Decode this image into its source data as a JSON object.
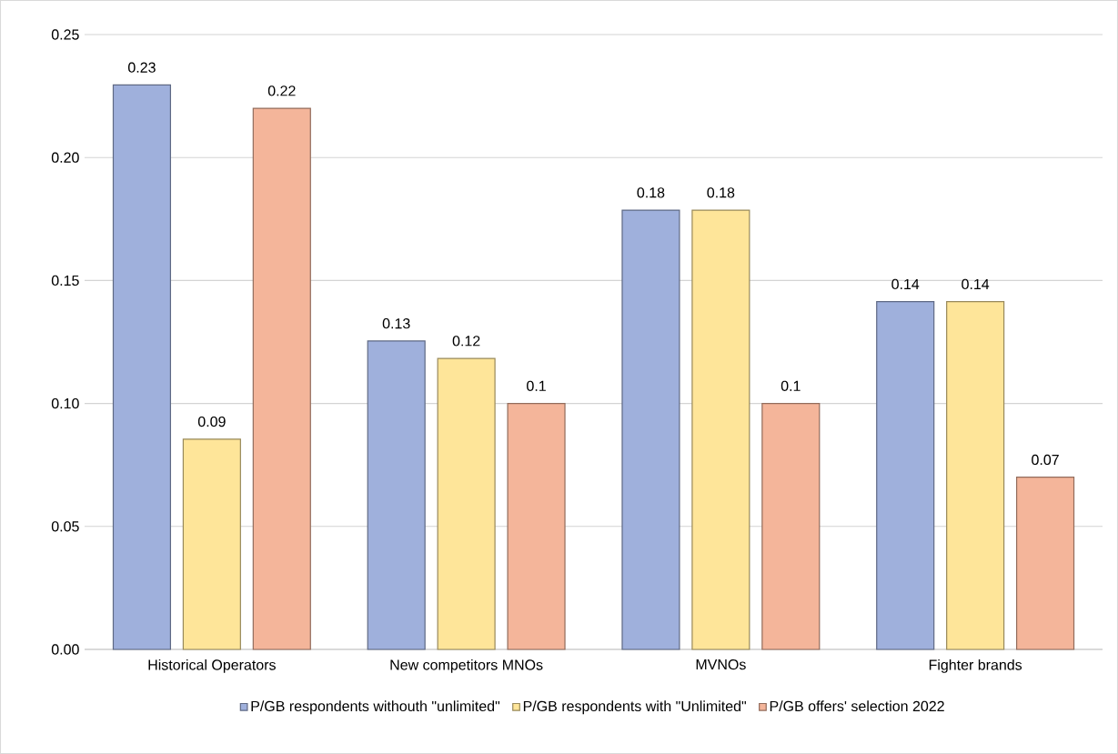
{
  "chart_data": {
    "type": "bar",
    "categories": [
      "Historical Operators",
      "New competitors MNOs",
      "MVNOs",
      "Fighter brands"
    ],
    "series": [
      {
        "name": "P/GB respondents withouth \"unlimited\"",
        "color": "#9fb0dc",
        "values": [
          0.2295,
          0.1254,
          0.1786,
          0.1414
        ],
        "value_labels": [
          "0.23",
          "0.13",
          "0.18",
          "0.14"
        ]
      },
      {
        "name": "P/GB respondents with \"Unlimited\"",
        "color": "#fee599",
        "values": [
          0.0855,
          0.1183,
          0.1786,
          0.1414
        ],
        "value_labels": [
          "0.09",
          "0.12",
          "0.18",
          "0.14"
        ]
      },
      {
        "name": "P/GB offers' selection 2022",
        "color": "#f4b59a",
        "values": [
          0.22,
          0.1,
          0.1,
          0.07
        ],
        "value_labels": [
          "0.22",
          "0.1",
          "0.1",
          "0.07"
        ]
      }
    ],
    "ylim": [
      0,
      0.25
    ],
    "yticks": [
      {
        "value": 0,
        "label": "0.00"
      },
      {
        "value": 0.05,
        "label": "0.05"
      },
      {
        "value": 0.1,
        "label": "0.10"
      },
      {
        "value": 0.15,
        "label": "0.15"
      },
      {
        "value": 0.2,
        "label": "0.20"
      },
      {
        "value": 0.25,
        "label": "0.25"
      }
    ],
    "grid": "y",
    "legend": "bottom"
  }
}
